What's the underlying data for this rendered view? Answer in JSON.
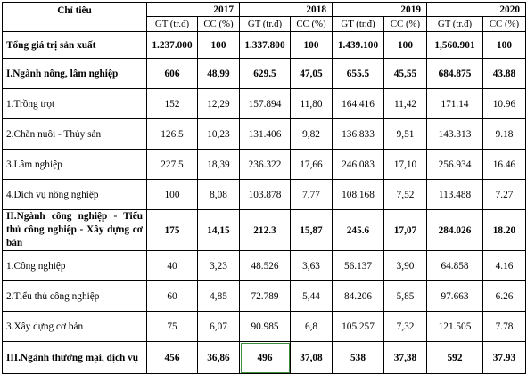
{
  "header": {
    "label": "Chỉ tiêu",
    "years": [
      "2017",
      "2018",
      "2019",
      "2020"
    ],
    "gt_label": "GT (tr.đ)",
    "cc_label": "CC (%)"
  },
  "rows": [
    {
      "label": "Tổng giá trị sản xuất",
      "bold": true,
      "cls": "r-total",
      "values": [
        "1.237.000",
        "100",
        "1.337.800",
        "100",
        "1.439.100",
        "100",
        "1,560.901",
        "100"
      ]
    },
    {
      "label": "I.Ngành nông, lâm nghiệp",
      "bold": true,
      "cls": "r-std",
      "values": [
        "606",
        "48,99",
        "629.5",
        "47,05",
        "655.5",
        "45,55",
        "684.875",
        "43.88"
      ]
    },
    {
      "label": "1.Trồng trọt",
      "bold": false,
      "cls": "r-std",
      "values": [
        "152",
        "12,29",
        "157.894",
        "11,80",
        "164.416",
        "11,42",
        "171.14",
        "10.96"
      ]
    },
    {
      "label": "2.Chăn nuôi - Thủy sản",
      "bold": false,
      "cls": "r-std",
      "values": [
        "126.5",
        "10,23",
        "131.406",
        "9,82",
        "136.833",
        "9,51",
        "143.313",
        "9.18"
      ]
    },
    {
      "label": "3.Lâm nghiệp",
      "bold": false,
      "cls": "r-std",
      "values": [
        "227.5",
        "18,39",
        "236.322",
        "17,66",
        "246.083",
        "17,10",
        "256.934",
        "16.46"
      ]
    },
    {
      "label": "4.Dịch vụ nông nghiệp",
      "bold": false,
      "cls": "r-std",
      "values": [
        "100",
        "8,08",
        "103.878",
        "7,77",
        "108.168",
        "7,52",
        "113.488",
        "7.27"
      ]
    },
    {
      "label": "II.Ngành công nghiệp - Tiểu thủ công nghiệp - Xây dựng cơ bản",
      "bold": true,
      "cls": "r-sec2",
      "wrap": true,
      "values": [
        "175",
        "14,15",
        "212.3",
        "15,87",
        "245.6",
        "17,07",
        "284.026",
        "18.20"
      ]
    },
    {
      "label": "1.Công nghiệp",
      "bold": false,
      "cls": "r-std",
      "values": [
        "40",
        "3,23",
        "48.526",
        "3,63",
        "56.137",
        "3,90",
        "64.858",
        "4.16"
      ]
    },
    {
      "label": "2.Tiểu thủ công nghiệp",
      "bold": false,
      "cls": "r-std",
      "values": [
        "60",
        "4,85",
        "72.789",
        "5,44",
        "84.206",
        "5,85",
        "97.663",
        "6.26"
      ]
    },
    {
      "label": "3.Xây dựng cơ bản",
      "bold": false,
      "cls": "r-std",
      "values": [
        "75",
        "6,07",
        "90.985",
        "6,8",
        "105.257",
        "7,32",
        "121.505",
        "7.78"
      ]
    },
    {
      "label": "III.Ngành thương mại, dịch vụ",
      "bold": true,
      "cls": "r-last",
      "values": [
        "456",
        "36,86",
        "496",
        "37,08",
        "538",
        "37,38",
        "592",
        "37.93"
      ]
    }
  ]
}
